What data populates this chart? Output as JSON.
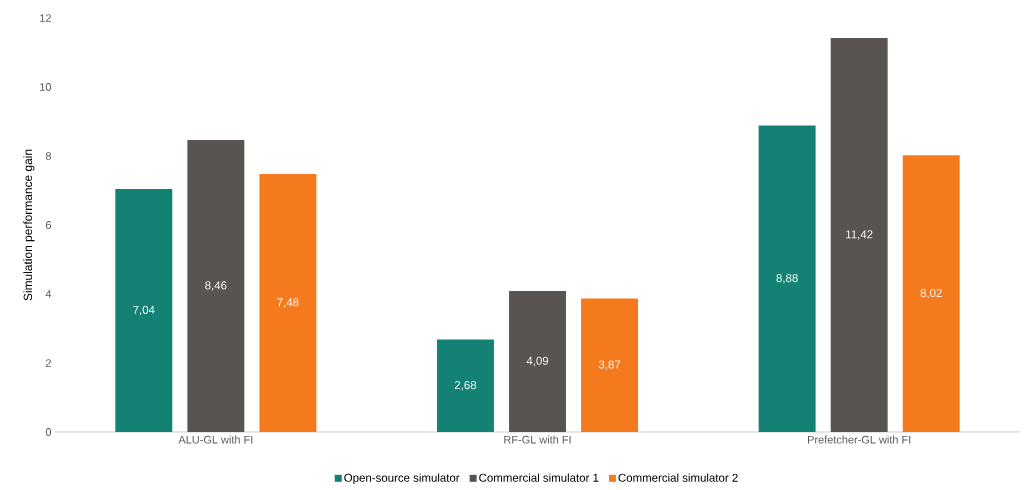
{
  "chart_data": {
    "type": "bar",
    "ylabel": "Simulation performance gain",
    "categories": [
      "ALU-GL with FI",
      "RF-GL with FI",
      "Prefetcher-GL with FI"
    ],
    "series": [
      {
        "name": "Open-source simulator",
        "color": "#138275",
        "values": [
          7.04,
          2.68,
          8.88
        ],
        "value_labels": [
          "7,04",
          "2,68",
          "8,88"
        ]
      },
      {
        "name": "Commercial simulator 1",
        "color": "#595452",
        "values": [
          8.46,
          4.09,
          11.42
        ],
        "value_labels": [
          "8,46",
          "4,09",
          "11,42"
        ]
      },
      {
        "name": "Commercial simulator 2",
        "color": "#f57a1e",
        "values": [
          7.48,
          3.87,
          8.02
        ],
        "value_labels": [
          "7,48",
          "3,87",
          "8,02"
        ]
      }
    ],
    "ylim": [
      0,
      12
    ],
    "yticks": [
      0,
      2,
      4,
      6,
      8,
      10,
      12
    ],
    "legend": "bottom"
  }
}
